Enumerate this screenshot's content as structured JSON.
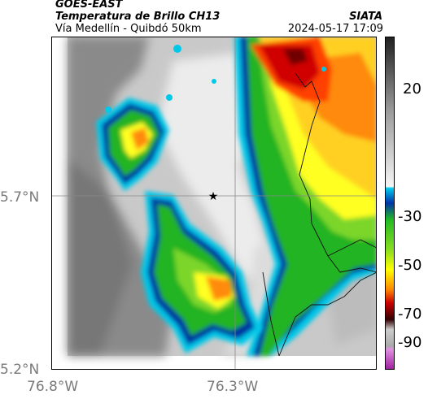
{
  "header": {
    "satellite": "GOES-EAST",
    "product": "Temperatura de Brillo CH13",
    "route": "Vía Medellín - Quibdó 50km",
    "source": "SIATA",
    "timestamp": "2024-05-17 17:09"
  },
  "map": {
    "lat_labels": [
      "5.7°N",
      "5.2°N"
    ],
    "lon_labels": [
      "76.8°W",
      "76.3°W"
    ],
    "marker_icon": "star-icon",
    "gridline_color": "#888888"
  },
  "colorbar": {
    "tick_labels": [
      "20",
      "-30",
      "-50",
      "-70",
      "-90"
    ],
    "colors": {
      "very_cold": "#c040c0",
      "cold_red": "#cc0000",
      "orange": "#ff8800",
      "yellow": "#ffff00",
      "green": "#22bb22",
      "blue": "#0033aa",
      "cyan": "#00ccee",
      "gray_light": "#e8e8e8",
      "gray_dark": "#303030"
    }
  }
}
